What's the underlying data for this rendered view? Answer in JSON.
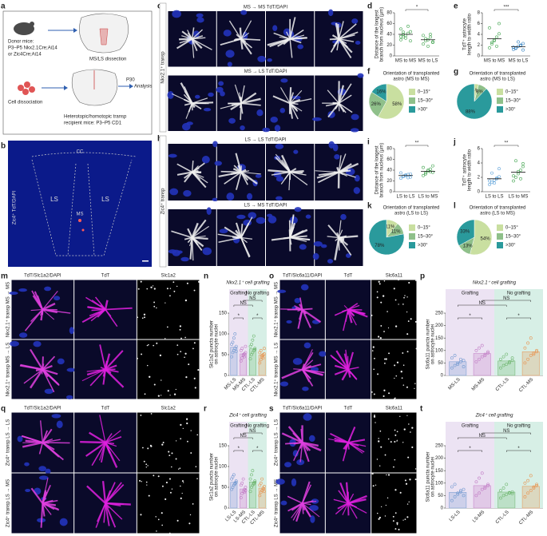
{
  "figure": {
    "a": {
      "letter": "a",
      "donor": "Donor mice:",
      "donor_lines": [
        "P3–P5 Nkx2.1Cre;Ai14",
        "or Zic4Cre;Ai14"
      ],
      "dissection": "MS/LS dissection",
      "cell": "Cell dissociation",
      "p30": "P30",
      "analysis": "Analysis",
      "recipient": [
        "Heterotopic/homotopic transp",
        "recipient mice: P3–P5 CD1"
      ]
    },
    "b": {
      "letter": "b",
      "stain": "Zic4⁺ TdT/DAPI",
      "regions": [
        "CC",
        "LS",
        "LS",
        "MS"
      ]
    },
    "micro": [
      {
        "letter": "c",
        "side": "Nkx2.1⁺ transp",
        "rows": [
          "MS → MS TdT/DAPI",
          "MS → LS TdT/DAPI"
        ]
      },
      {
        "letter": "h",
        "side": "Zic4⁺ transp",
        "rows": [
          "LS → LS TdT/DAPI",
          "LS → MS TdT/DAPI"
        ]
      },
      {
        "letter": "m",
        "cols": [
          "TdT/Slc1a2/DAPI",
          "TdT",
          "Slc1a2"
        ],
        "rows": [
          "Nkx2.1⁺ transp MS → MS",
          "Nkx2.1⁺ transp MS → LS"
        ]
      },
      {
        "letter": "o",
        "cols": [
          "TdT/Slc6a11/DAPI",
          "TdT",
          "Slc6a11"
        ],
        "rows": [
          "Nkx2.1⁺ transp MS → MS",
          "Nkx2.1⁺ transp MS → LS"
        ]
      },
      {
        "letter": "q",
        "cols": [
          "TdT/Slc1a2/DAPI",
          "TdT",
          "Slc1a2"
        ],
        "rows": [
          "Zic4⁺ transp LS → LS",
          "Zic4⁺ transp LS → MS"
        ]
      },
      {
        "letter": "s",
        "cols": [
          "TdT/Slc6a11/DAPI",
          "TdT",
          "Slc6a11"
        ],
        "rows": [
          "Zic4⁺ transp LS → LS",
          "Zic4⁺ transp LS → MS"
        ]
      }
    ]
  },
  "chart_data": [
    {
      "type": "dot",
      "letter": "d",
      "ylabel": [
        "Distance of the longest",
        "branch from nucleus (µm)"
      ],
      "categories": [
        "MS to MS",
        "MS to LS"
      ],
      "colors": [
        "#3fa34d",
        "#3fa34d"
      ],
      "values": [
        [
          30,
          35,
          38,
          42,
          45,
          50,
          40,
          33,
          55,
          28,
          36,
          44
        ],
        [
          22,
          28,
          30,
          35,
          26,
          38,
          32,
          18,
          40,
          25
        ]
      ],
      "means": [
        40,
        30
      ],
      "sig": "*",
      "ylim": [
        0,
        80
      ],
      "yticks": [
        0,
        20,
        40,
        60,
        80
      ]
    },
    {
      "type": "dot",
      "letter": "e",
      "ylabel": [
        "TdT⁺ astrocyte",
        "length to width ratio"
      ],
      "categories": [
        "MS to MS",
        "MS to LS"
      ],
      "colors": [
        "#3fa34d",
        "#2f7fc1"
      ],
      "values": [
        [
          1.5,
          2.2,
          2.8,
          3.5,
          4.1,
          5.2,
          2.5,
          3.0,
          1.8,
          6.0
        ],
        [
          1.2,
          1.5,
          1.8,
          2.0,
          2.3,
          1.6,
          1.4,
          2.6,
          1.9,
          1.1
        ]
      ],
      "means": [
        3.2,
        1.7
      ],
      "sig": "***",
      "ylim": [
        0,
        8
      ],
      "yticks": [
        0,
        2,
        4,
        6,
        8
      ]
    },
    {
      "type": "dot",
      "letter": "i",
      "ylabel": [
        "Distance of the longest",
        "branch from nucleus (µm)"
      ],
      "categories": [
        "LS to LS",
        "LS to MS"
      ],
      "colors": [
        "#5aa0d8",
        "#3fa34d"
      ],
      "values": [
        [
          25,
          28,
          30,
          32,
          27,
          35,
          29,
          31,
          26,
          33
        ],
        [
          30,
          35,
          38,
          42,
          36,
          45,
          33,
          40,
          37,
          48
        ]
      ],
      "means": [
        30,
        38
      ],
      "sig": "**",
      "ylim": [
        0,
        80
      ],
      "yticks": [
        0,
        20,
        40,
        60,
        80
      ]
    },
    {
      "type": "dot",
      "letter": "j",
      "ylabel": [
        "TdT⁺ astrocyte",
        "length to width ratio"
      ],
      "categories": [
        "LS to LS",
        "LS to MS"
      ],
      "colors": [
        "#5aa0d8",
        "#3fa34d"
      ],
      "values": [
        [
          1.0,
          1.3,
          1.6,
          1.8,
          2.1,
          1.5,
          2.6,
          1.2,
          1.9,
          3.2
        ],
        [
          1.5,
          2.0,
          2.5,
          3.0,
          3.5,
          2.2,
          4.3,
          2.8,
          1.8,
          3.9
        ]
      ],
      "means": [
        1.8,
        2.7
      ],
      "sig": "**",
      "ylim": [
        0,
        6
      ],
      "yticks": [
        0,
        2,
        4,
        6
      ]
    },
    {
      "type": "pie",
      "letter": "f",
      "title": [
        "Orientation of transplanted",
        "astro (MS to MS)"
      ],
      "categories": [
        "0–15°",
        "15–30°",
        ">30°"
      ],
      "colors": [
        "#c9dfa0",
        "#8fc08a",
        "#2a9a9c"
      ],
      "values": [
        58,
        26,
        16
      ],
      "value_labels": [
        "58%",
        "26%",
        "16%"
      ]
    },
    {
      "type": "pie",
      "letter": "g",
      "title": [
        "Orientation of transplanted",
        "astro (MS to LS)"
      ],
      "categories": [
        "0–15°",
        "15–30°",
        ">30°"
      ],
      "colors": [
        "#c9dfa0",
        "#8fc08a",
        "#2a9a9c"
      ],
      "values": [
        4,
        8,
        88
      ],
      "value_labels": [
        "4%",
        "8%",
        "88%"
      ]
    },
    {
      "type": "pie",
      "letter": "k",
      "title": [
        "Orientation of transplanted",
        "astro (LS to LS)"
      ],
      "categories": [
        "0–15°",
        "15–30°",
        ">30°"
      ],
      "colors": [
        "#c9dfa0",
        "#8fc08a",
        "#2a9a9c"
      ],
      "values": [
        11,
        11,
        78
      ],
      "value_labels": [
        "11%",
        "11%",
        "78%"
      ]
    },
    {
      "type": "pie",
      "letter": "l",
      "title": [
        "Orientation of transplanted",
        "astro (LS to MS)"
      ],
      "categories": [
        "0–15°",
        "15–30°",
        ">30°"
      ],
      "colors": [
        "#c9dfa0",
        "#8fc08a",
        "#2a9a9c"
      ],
      "values": [
        54,
        13,
        33
      ],
      "value_labels": [
        "54%",
        "13%",
        "33%"
      ]
    },
    {
      "type": "bar",
      "letter": "n",
      "title": "Nkx2.1⁺ cell grafting",
      "groups": [
        "Grafting",
        "No grafting"
      ],
      "ylabel": [
        "Slc1a2 puncta number",
        "on astrocyte nuclei"
      ],
      "categories": [
        "MS-LS",
        "MS-MS",
        "CTL-LS",
        "CTL-MS"
      ],
      "colors": [
        "#6f97cf",
        "#c07ac4",
        "#6cb46c",
        "#e8934f"
      ],
      "values": [
        68,
        52,
        64,
        49
      ],
      "points": [
        [
          45,
          55,
          60,
          65,
          70,
          75,
          80,
          90,
          100,
          58
        ],
        [
          35,
          42,
          48,
          52,
          55,
          60,
          65,
          50,
          45,
          70
        ],
        [
          40,
          50,
          55,
          60,
          65,
          70,
          75,
          85,
          95,
          62
        ],
        [
          30,
          38,
          45,
          50,
          52,
          55,
          60,
          48,
          42,
          65
        ]
      ],
      "sigs": [
        "*",
        "*",
        "NS",
        "NS"
      ],
      "ylim": [
        0,
        150
      ],
      "yticks": [
        0,
        50,
        100,
        150
      ]
    },
    {
      "type": "bar",
      "letter": "p",
      "title": "Nkx2.1⁺ cell grafting",
      "groups": [
        "Grafting",
        "No grafting"
      ],
      "ylabel": [
        "Slc6a11 puncta number",
        "on astrocyte nuclei"
      ],
      "categories": [
        "MS-LS",
        "MS-MS",
        "CTL-LS",
        "CTL-MS"
      ],
      "colors": [
        "#6f97cf",
        "#c07ac4",
        "#6cb46c",
        "#e8934f"
      ],
      "values": [
        55,
        88,
        58,
        95
      ],
      "points": [
        [
          30,
          40,
          50,
          55,
          60,
          70,
          80,
          45,
          65,
          35
        ],
        [
          55,
          65,
          75,
          85,
          90,
          100,
          110,
          120,
          80,
          95
        ],
        [
          30,
          40,
          45,
          55,
          60,
          65,
          75,
          85,
          50,
          70
        ],
        [
          50,
          65,
          80,
          90,
          100,
          110,
          130,
          150,
          85,
          95
        ]
      ],
      "sigs": [
        "*",
        "*",
        "NS",
        "NS"
      ],
      "ylim": [
        0,
        250
      ],
      "yticks": [
        0,
        50,
        100,
        150,
        200,
        250
      ]
    },
    {
      "type": "bar",
      "letter": "r",
      "title": "Zic4⁺ cell grafting",
      "groups": [
        "Grafting",
        "No grafting"
      ],
      "ylabel": [
        "Slc1a2 puncta number",
        "on astrocyte nuclei"
      ],
      "categories": [
        "LS-LS",
        "LS-MS",
        "CTL-LS",
        "CTL-MS"
      ],
      "colors": [
        "#6f97cf",
        "#c07ac4",
        "#6cb46c",
        "#e8934f"
      ],
      "values": [
        62,
        46,
        63,
        48
      ],
      "points": [
        [
          45,
          50,
          55,
          60,
          65,
          70,
          75,
          80,
          58,
          62
        ],
        [
          25,
          35,
          40,
          45,
          50,
          55,
          60,
          70,
          38,
          42
        ],
        [
          40,
          50,
          55,
          60,
          65,
          70,
          80,
          90,
          58,
          62
        ],
        [
          30,
          38,
          42,
          48,
          52,
          55,
          60,
          70,
          45,
          40
        ]
      ],
      "sigs": [
        "*",
        "*",
        "NS",
        "NS"
      ],
      "ylim": [
        0,
        150
      ],
      "yticks": [
        0,
        50,
        100,
        150
      ]
    },
    {
      "type": "bar",
      "letter": "t",
      "title": "Zic4⁺ cell grafting",
      "groups": [
        "Grafting",
        "No grafting"
      ],
      "ylabel": [
        "Slc6a11 puncta number",
        "on astrocyte nuclei"
      ],
      "categories": [
        "LS-LS",
        "LS-MS",
        "CTL-LS",
        "CTL-MS"
      ],
      "colors": [
        "#6f97cf",
        "#c07ac4",
        "#6cb46c",
        "#e8934f"
      ],
      "values": [
        63,
        90,
        64,
        87
      ],
      "points": [
        [
          30,
          45,
          55,
          65,
          75,
          85,
          95,
          60,
          70,
          50
        ],
        [
          50,
          60,
          75,
          85,
          95,
          105,
          120,
          140,
          80,
          90
        ],
        [
          40,
          50,
          55,
          60,
          65,
          70,
          80,
          95,
          62,
          58
        ],
        [
          45,
          60,
          70,
          80,
          90,
          100,
          110,
          130,
          85,
          95
        ]
      ],
      "sigs": [
        "*",
        "*",
        "NS",
        "NS"
      ],
      "ylim": [
        0,
        250
      ],
      "yticks": [
        0,
        50,
        100,
        150,
        200,
        250
      ]
    }
  ]
}
